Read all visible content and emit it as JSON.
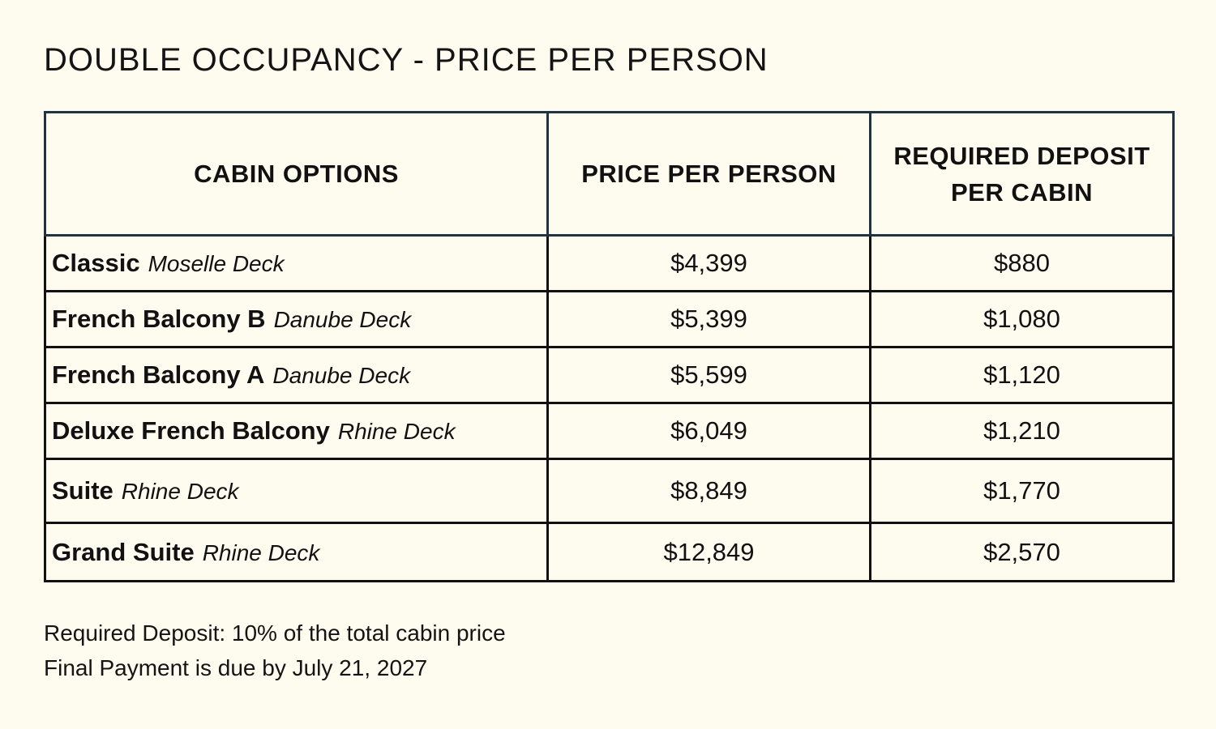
{
  "title": "DOUBLE OCCUPANCY - PRICE PER PERSON",
  "table": {
    "headers": {
      "cabin": "CABIN OPTIONS",
      "price": "PRICE PER PERSON",
      "deposit_line1": "REQUIRED DEPOSIT",
      "deposit_line2": "PER CABIN"
    },
    "rows": [
      {
        "cabin": "Classic",
        "deck": "Moselle Deck",
        "price": "$4,399",
        "deposit": "$880"
      },
      {
        "cabin": "French Balcony B",
        "deck": "Danube Deck",
        "price": "$5,399",
        "deposit": "$1,080"
      },
      {
        "cabin": "French Balcony A",
        "deck": "Danube Deck",
        "price": "$5,599",
        "deposit": "$1,120"
      },
      {
        "cabin": "Deluxe French Balcony",
        "deck": "Rhine Deck",
        "price": "$6,049",
        "deposit": "$1,210"
      },
      {
        "cabin": "Suite",
        "deck": "Rhine Deck",
        "price": "$8,849",
        "deposit": "$1,770"
      },
      {
        "cabin": "Grand Suite",
        "deck": "Rhine Deck",
        "price": "$12,849",
        "deposit": "$2,570"
      }
    ]
  },
  "notes": {
    "deposit_note": "Required Deposit: 10% of the total cabin price",
    "payment_note": "Final Payment is due by July 21, 2027"
  },
  "colors": {
    "background": "#fefbef",
    "text": "#111111",
    "header_border": "#1e3344"
  }
}
